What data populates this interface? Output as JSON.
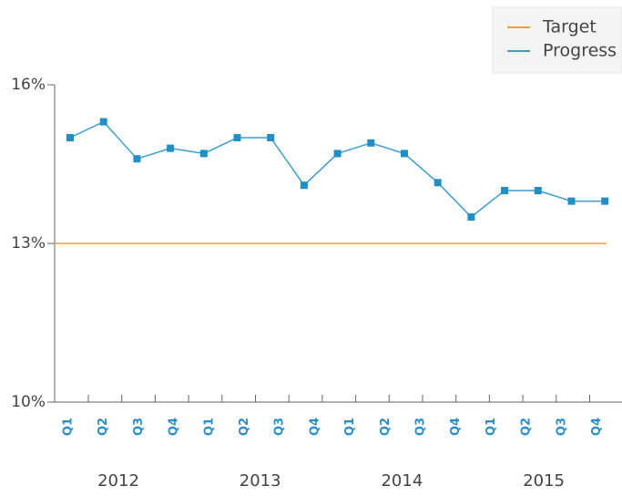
{
  "chart_data": {
    "type": "line",
    "categories": [
      "Q1",
      "Q2",
      "Q3",
      "Q4",
      "Q1",
      "Q2",
      "Q3",
      "Q4",
      "Q1",
      "Q2",
      "Q3",
      "Q4",
      "Q1",
      "Q2",
      "Q3",
      "Q4",
      null
    ],
    "year_labels": [
      "2012",
      "2013",
      "2014",
      "2015"
    ],
    "series": [
      {
        "name": "Target",
        "color": "#f0a030",
        "values": [
          13,
          13,
          13,
          13,
          13,
          13,
          13,
          13,
          13,
          13,
          13,
          13,
          13,
          13,
          13,
          13,
          13
        ]
      },
      {
        "name": "Progress",
        "color": "#3a9fd0",
        "values": [
          15.0,
          15.3,
          14.6,
          14.8,
          14.7,
          15.0,
          15.0,
          14.1,
          14.7,
          14.9,
          14.7,
          14.15,
          13.5,
          14.0,
          14.0,
          13.8,
          13.8
        ]
      }
    ],
    "ylim": [
      10,
      16
    ],
    "yticks": [
      {
        "value": 10,
        "label": "10%"
      },
      {
        "value": 13,
        "label": "13%"
      },
      {
        "value": 16,
        "label": "16%"
      }
    ],
    "legend": "top-right"
  }
}
